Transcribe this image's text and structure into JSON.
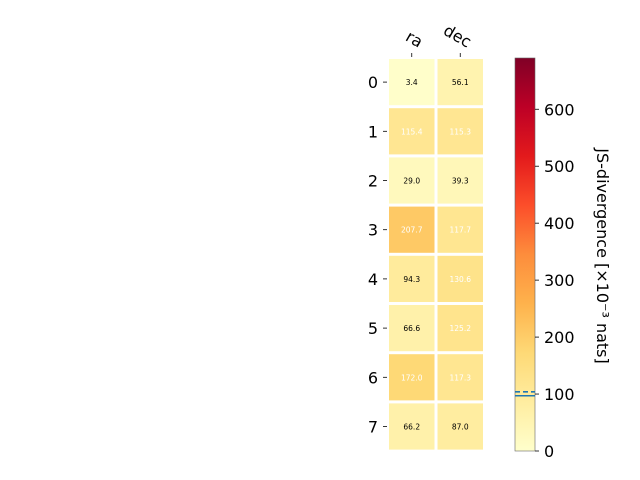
{
  "chart_data": {
    "type": "heatmap",
    "columns": [
      "ra",
      "dec"
    ],
    "rows": [
      "0",
      "1",
      "2",
      "3",
      "4",
      "5",
      "6",
      "7"
    ],
    "values": [
      [
        3.4,
        56.1
      ],
      [
        115.4,
        115.3
      ],
      [
        29.0,
        39.3
      ],
      [
        207.7,
        117.7
      ],
      [
        94.3,
        130.6
      ],
      [
        66.6,
        125.2
      ],
      [
        172.0,
        117.3
      ],
      [
        66.2,
        87.0
      ]
    ],
    "value_labels": [
      [
        "3.4",
        "56.1"
      ],
      [
        "115.4",
        "115.3"
      ],
      [
        "29.0",
        "39.3"
      ],
      [
        "207.7",
        "117.7"
      ],
      [
        "94.3",
        "130.6"
      ],
      [
        "66.6",
        "125.2"
      ],
      [
        "172.0",
        "117.3"
      ],
      [
        "66.2",
        "87.0"
      ]
    ],
    "colorbar": {
      "label": "JS-divergence [×10⁻³ nats]",
      "range": [
        0,
        690
      ],
      "ticks": [
        "0",
        "100",
        "200",
        "300",
        "400",
        "500",
        "600"
      ],
      "tick_values": [
        0,
        100,
        200,
        300,
        400,
        500,
        600
      ],
      "marker_lines": [
        97,
        104
      ],
      "colormap": "YlOrRd",
      "marker_color": "#1f77b4"
    },
    "label_threshold": 100,
    "label_color_low": "#000000",
    "label_color_high": "#ffffff",
    "grid": false
  }
}
